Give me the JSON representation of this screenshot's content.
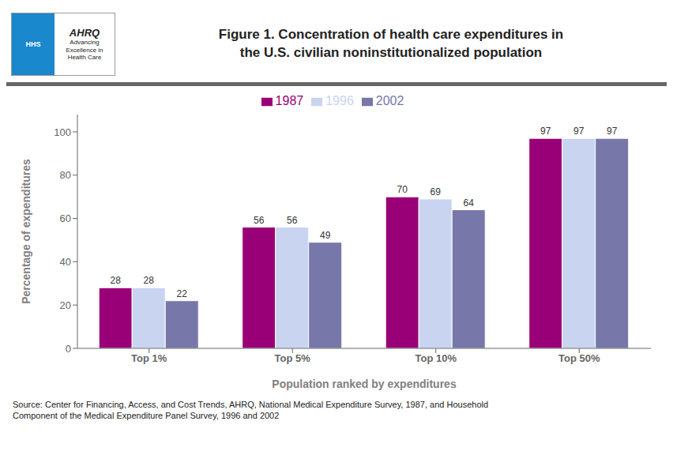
{
  "chart_data": {
    "type": "bar",
    "title": "Figure 1. Concentration of health care expenditures in\nthe U.S. civilian noninstitutionalized population",
    "annotations": [
      "HHS",
      "AHRQ",
      "Advancing\nExcellence in\nHealth Care",
      "Source: Center for Financing, Access, and Cost Trends, AHRQ, National Medical Expenditure Survey, 1987, and Household\nComponent of the Medical Expenditure Panel Survey, 1996 and 2002"
    ],
    "categories": [
      "Top 1%",
      "Top 5%",
      "Top 10%",
      "Top 50%"
    ],
    "series": [
      {
        "name": "1987",
        "color": "#990077",
        "values": [
          28,
          56,
          70,
          97
        ]
      },
      {
        "name": "1996",
        "color": "#c8d4f0",
        "values": [
          28,
          56,
          69,
          97
        ]
      },
      {
        "name": "2002",
        "color": "#7777aa",
        "values": [
          22,
          49,
          64,
          97
        ]
      }
    ],
    "xlabel": "Population ranked by expenditures",
    "ylabel": "Percentage of expenditures",
    "ylim": [
      0,
      108
    ],
    "yticks": [
      0,
      20,
      40,
      60,
      80,
      100
    ],
    "grid": false,
    "legend": "top",
    "data_labels": true
  }
}
